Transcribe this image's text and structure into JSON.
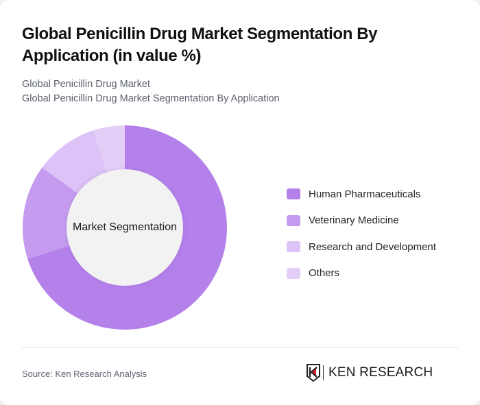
{
  "header": {
    "title": "Global Penicillin Drug Market Segmentation By Application (in value %)",
    "subtitle_line1": "Global Penicillin Drug Market",
    "subtitle_line2": "Global Penicillin Drug Market Segmentation By Application"
  },
  "chart": {
    "center_label": "Market Segmentation"
  },
  "legend": {
    "items": [
      {
        "label": "Human Pharmaceuticals",
        "color": "#b480ea"
      },
      {
        "label": "Veterinary Medicine",
        "color": "#c49bee"
      },
      {
        "label": "Research and Development",
        "color": "#dcc2f6"
      },
      {
        "label": "Others",
        "color": "#e3cef8"
      }
    ]
  },
  "footer": {
    "source": "Source: Ken Research Analysis",
    "logo_text": "KEN RESEARCH"
  },
  "chart_data": {
    "type": "pie",
    "subtype": "donut",
    "title": "Global Penicillin Drug Market Segmentation By Application (in value %)",
    "center_label": "Market Segmentation",
    "categories": [
      "Human Pharmaceuticals",
      "Veterinary Medicine",
      "Research and Development",
      "Others"
    ],
    "values": [
      70,
      15,
      10,
      5
    ],
    "colors": [
      "#b480ea",
      "#c49bee",
      "#dcc2f6",
      "#e3cef8"
    ],
    "legend_position": "right",
    "unit": "%"
  }
}
